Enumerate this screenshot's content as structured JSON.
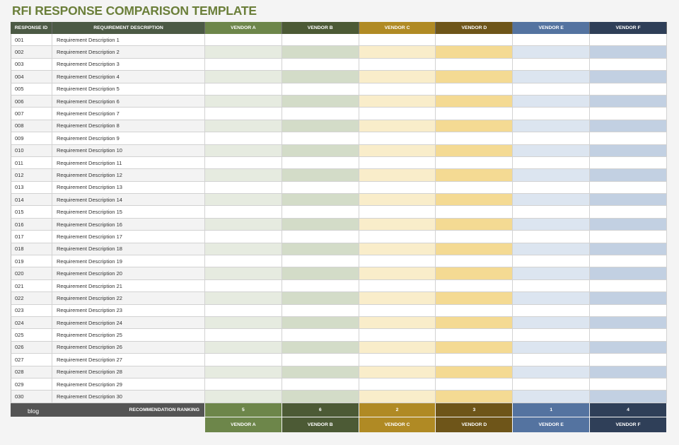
{
  "title": "RFI RESPONSE COMPARISON TEMPLATE",
  "headers": {
    "response_id": "RESPONSE ID",
    "requirement": "REQUIREMENT DESCRIPTION"
  },
  "vendors": [
    {
      "name": "VENDOR A",
      "ranking": "5",
      "header_color": "#6d864a",
      "odd_fill": "#ffffff",
      "even_fill": "#e6ebe0"
    },
    {
      "name": "VENDOR B",
      "ranking": "6",
      "header_color": "#4c5a35",
      "odd_fill": "#ffffff",
      "even_fill": "#d3dcc8"
    },
    {
      "name": "VENDOR C",
      "ranking": "2",
      "header_color": "#b08a24",
      "odd_fill": "#ffffff",
      "even_fill": "#f9edca"
    },
    {
      "name": "VENDOR D",
      "ranking": "3",
      "header_color": "#6e5519",
      "odd_fill": "#ffffff",
      "even_fill": "#f4da93"
    },
    {
      "name": "VENDOR E",
      "ranking": "1",
      "header_color": "#5473a0",
      "odd_fill": "#ffffff",
      "even_fill": "#dce5f0"
    },
    {
      "name": "VENDOR F",
      "ranking": "4",
      "header_color": "#2f3f58",
      "odd_fill": "#ffffff",
      "even_fill": "#c2d0e2"
    }
  ],
  "rows": [
    {
      "id": "001",
      "desc": "Requirement Description 1"
    },
    {
      "id": "002",
      "desc": "Requirement Description 2"
    },
    {
      "id": "003",
      "desc": "Requirement Description 3"
    },
    {
      "id": "004",
      "desc": "Requirement Description 4"
    },
    {
      "id": "005",
      "desc": "Requirement Description 5"
    },
    {
      "id": "006",
      "desc": "Requirement Description 6"
    },
    {
      "id": "007",
      "desc": "Requirement Description 7"
    },
    {
      "id": "008",
      "desc": "Requirement Description 8"
    },
    {
      "id": "009",
      "desc": "Requirement Description 9"
    },
    {
      "id": "010",
      "desc": "Requirement Description 10"
    },
    {
      "id": "011",
      "desc": "Requirement Description 11"
    },
    {
      "id": "012",
      "desc": "Requirement Description 12"
    },
    {
      "id": "013",
      "desc": "Requirement Description 13"
    },
    {
      "id": "014",
      "desc": "Requirement Description 14"
    },
    {
      "id": "015",
      "desc": "Requirement Description 15"
    },
    {
      "id": "016",
      "desc": "Requirement Description 16"
    },
    {
      "id": "017",
      "desc": "Requirement Description 17"
    },
    {
      "id": "018",
      "desc": "Requirement Description 18"
    },
    {
      "id": "019",
      "desc": "Requirement Description 19"
    },
    {
      "id": "020",
      "desc": "Requirement Description 20"
    },
    {
      "id": "021",
      "desc": "Requirement Description 21"
    },
    {
      "id": "022",
      "desc": "Requirement Description 22"
    },
    {
      "id": "023",
      "desc": "Requirement Description 23"
    },
    {
      "id": "024",
      "desc": "Requirement Description 24"
    },
    {
      "id": "025",
      "desc": "Requirement Description 25"
    },
    {
      "id": "026",
      "desc": "Requirement Description 26"
    },
    {
      "id": "027",
      "desc": "Requirement Description 27"
    },
    {
      "id": "028",
      "desc": "Requirement Description 28"
    },
    {
      "id": "029",
      "desc": "Requirement Description 29"
    },
    {
      "id": "030",
      "desc": "Requirement Description 30"
    }
  ],
  "footer": {
    "ranking_label": "RECOMMENDATION RANKING",
    "watermark": "blog"
  }
}
